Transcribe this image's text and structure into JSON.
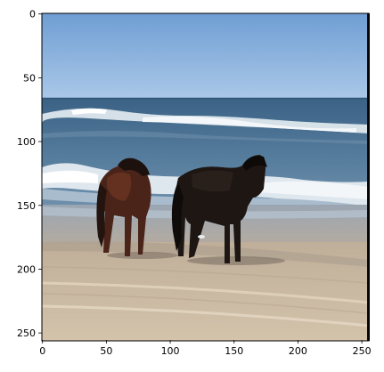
{
  "image_axes": {
    "x_ticks": [
      "0",
      "50",
      "100",
      "150",
      "200",
      "250"
    ],
    "y_ticks": [
      "0",
      "50",
      "100",
      "150",
      "200",
      "250"
    ]
  },
  "scene": {
    "colors": {
      "sky_top": "#6f9ed3",
      "sky_bottom": "#aac8e8",
      "ocean_far": "#3f6689",
      "ocean_mid": "#4f7697",
      "foam": "#e8eef3",
      "wet_sand": "#8f98a3",
      "dry_sand": "#c8b59d",
      "horse_left": "#4a2418",
      "horse_right": "#1d1613"
    }
  }
}
